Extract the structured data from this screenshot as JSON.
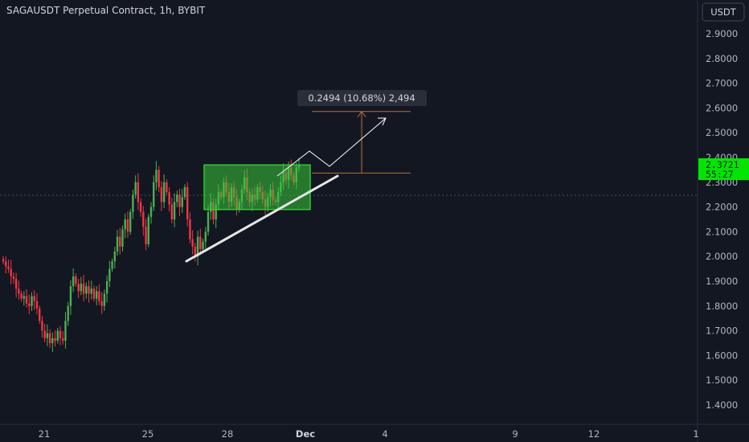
{
  "header": {
    "title": "SAGAUSDT Perpetual Contract, 1h, BYBIT"
  },
  "currency_button": {
    "label": "USDT"
  },
  "price_tag": {
    "price": "2.3721",
    "countdown": "55:27"
  },
  "measurement": {
    "label": "0.2494 (10.68%) 2,494"
  },
  "colors": {
    "background": "#131722",
    "up": "#26a69a",
    "up_candle": "#4caf50",
    "down_candle": "#f23645",
    "rect_fill": "#38c63a",
    "rect_border": "#2ecc2e",
    "price_tag_bg": "#00e600",
    "trendline": "#e6e6e6",
    "measure_line": "#b0703a"
  },
  "chart_data": {
    "type": "candlestick",
    "ylim": [
      1.35,
      3.0
    ],
    "y_ticks": [
      "2.9000",
      "2.8000",
      "2.7000",
      "2.6000",
      "2.5000",
      "2.4000",
      "2.3000",
      "2.2000",
      "2.1000",
      "2.0000",
      "1.9000",
      "1.8000",
      "1.7000",
      "1.6000",
      "1.5000",
      "1.4000"
    ],
    "x_ticks": [
      {
        "label": "21",
        "bold": false
      },
      {
        "label": "25",
        "bold": false
      },
      {
        "label": "28",
        "bold": false
      },
      {
        "label": "Dec",
        "bold": true
      },
      {
        "label": "4",
        "bold": false
      },
      {
        "label": "9",
        "bold": false
      },
      {
        "label": "12",
        "bold": false
      },
      {
        "label": "1",
        "bold": false
      }
    ],
    "current_price": 2.3721,
    "price_line": 2.3721,
    "rectangle": {
      "y_low": 2.19,
      "y_high": 2.37
    },
    "trendline": {
      "y_start": 1.98,
      "y_end": 2.33
    },
    "measure": {
      "y_low": 2.337,
      "y_high": 2.586,
      "change": 0.2494,
      "percent": 10.68,
      "ticks": 2494
    },
    "projection_path": [
      2.3,
      2.35,
      2.38,
      2.41,
      2.36,
      2.57
    ],
    "candles": [
      [
        1.99,
        1.98
      ],
      [
        1.98,
        1.96
      ],
      [
        1.96,
        1.95
      ],
      [
        1.95,
        1.92
      ],
      [
        1.92,
        1.91
      ],
      [
        1.91,
        1.87
      ],
      [
        1.87,
        1.85
      ],
      [
        1.85,
        1.83
      ],
      [
        1.83,
        1.84
      ],
      [
        1.84,
        1.81
      ],
      [
        1.81,
        1.8
      ],
      [
        1.8,
        1.84
      ],
      [
        1.84,
        1.82
      ],
      [
        1.82,
        1.79
      ],
      [
        1.79,
        1.74
      ],
      [
        1.74,
        1.7
      ],
      [
        1.7,
        1.67
      ],
      [
        1.67,
        1.69
      ],
      [
        1.69,
        1.65
      ],
      [
        1.65,
        1.67
      ],
      [
        1.67,
        1.66
      ],
      [
        1.66,
        1.7
      ],
      [
        1.7,
        1.67
      ],
      [
        1.67,
        1.66
      ],
      [
        1.66,
        1.74
      ],
      [
        1.74,
        1.8
      ],
      [
        1.8,
        1.88
      ],
      [
        1.88,
        1.92
      ],
      [
        1.92,
        1.89
      ],
      [
        1.89,
        1.86
      ],
      [
        1.86,
        1.89
      ],
      [
        1.89,
        1.85
      ],
      [
        1.85,
        1.88
      ],
      [
        1.88,
        1.85
      ],
      [
        1.85,
        1.87
      ],
      [
        1.87,
        1.83
      ],
      [
        1.83,
        1.86
      ],
      [
        1.86,
        1.82
      ],
      [
        1.82,
        1.8
      ],
      [
        1.8,
        1.85
      ],
      [
        1.85,
        1.9
      ],
      [
        1.9,
        1.95
      ],
      [
        1.95,
        1.98
      ],
      [
        1.98,
        2.02
      ],
      [
        2.02,
        2.08
      ],
      [
        2.08,
        2.04
      ],
      [
        2.04,
        2.11
      ],
      [
        2.11,
        2.15
      ],
      [
        2.15,
        2.1
      ],
      [
        2.1,
        2.18
      ],
      [
        2.18,
        2.25
      ],
      [
        2.25,
        2.3
      ],
      [
        2.3,
        2.22
      ],
      [
        2.22,
        2.18
      ],
      [
        2.18,
        2.12
      ],
      [
        2.12,
        2.05
      ],
      [
        2.05,
        2.16
      ],
      [
        2.16,
        2.2
      ],
      [
        2.2,
        2.3
      ],
      [
        2.3,
        2.35
      ],
      [
        2.35,
        2.28
      ],
      [
        2.28,
        2.22
      ],
      [
        2.22,
        2.3
      ],
      [
        2.3,
        2.26
      ],
      [
        2.26,
        2.21
      ],
      [
        2.21,
        2.15
      ],
      [
        2.15,
        2.22
      ],
      [
        2.22,
        2.25
      ],
      [
        2.25,
        2.2
      ],
      [
        2.2,
        2.24
      ],
      [
        2.24,
        2.28
      ],
      [
        2.28,
        2.15
      ],
      [
        2.15,
        2.07
      ],
      [
        2.07,
        2.04
      ],
      [
        2.04,
        2.0
      ],
      [
        2.0,
        2.08
      ],
      [
        2.08,
        2.03
      ],
      [
        2.03,
        2.06
      ],
      [
        2.06,
        2.1
      ],
      [
        2.1,
        2.18
      ],
      [
        2.18,
        2.22
      ],
      [
        2.22,
        2.15
      ],
      [
        2.15,
        2.21
      ],
      [
        2.21,
        2.26
      ],
      [
        2.26,
        2.24
      ],
      [
        2.24,
        2.3
      ],
      [
        2.3,
        2.26
      ],
      [
        2.26,
        2.22
      ],
      [
        2.22,
        2.28
      ],
      [
        2.28,
        2.24
      ],
      [
        2.24,
        2.19
      ],
      [
        2.19,
        2.22
      ],
      [
        2.22,
        2.27
      ],
      [
        2.27,
        2.32
      ],
      [
        2.32,
        2.26
      ],
      [
        2.26,
        2.22
      ],
      [
        2.22,
        2.25
      ],
      [
        2.25,
        2.23
      ],
      [
        2.23,
        2.28
      ],
      [
        2.28,
        2.26
      ],
      [
        2.26,
        2.23
      ],
      [
        2.23,
        2.2
      ],
      [
        2.2,
        2.24
      ],
      [
        2.24,
        2.27
      ],
      [
        2.27,
        2.23
      ],
      [
        2.23,
        2.22
      ],
      [
        2.22,
        2.26
      ],
      [
        2.26,
        2.3
      ],
      [
        2.3,
        2.34
      ],
      [
        2.34,
        2.31
      ],
      [
        2.31,
        2.36
      ],
      [
        2.36,
        2.33
      ],
      [
        2.33,
        2.3
      ],
      [
        2.3,
        2.36
      ],
      [
        2.36,
        2.37
      ]
    ]
  }
}
